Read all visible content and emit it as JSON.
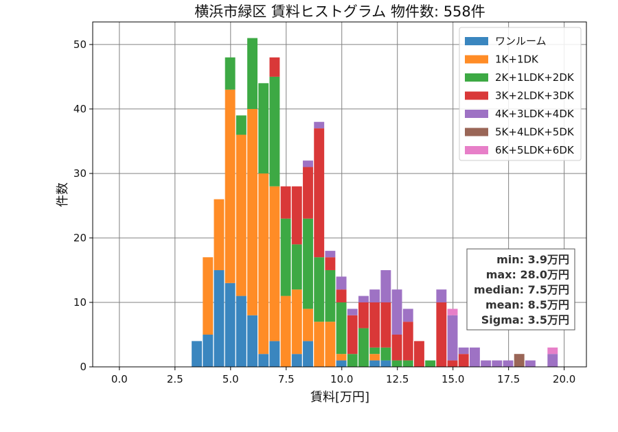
{
  "chart_data": {
    "type": "bar",
    "title": "横浜市緑区 賃料ヒストグラム 物件数: 558件",
    "xlabel": "賃料[万円]",
    "ylabel": "件数",
    "xlim": [
      -1.2,
      21.0
    ],
    "ylim": [
      0,
      53.5
    ],
    "bin_width": 0.5,
    "grid": true,
    "legend_position": "top-right",
    "xticks": [
      0.0,
      2.5,
      5.0,
      7.5,
      10.0,
      12.5,
      15.0,
      17.5,
      20.0
    ],
    "xtick_labels": [
      "0.0",
      "2.5",
      "5.0",
      "7.5",
      "10.0",
      "12.5",
      "15.0",
      "17.5",
      "20.0"
    ],
    "yticks": [
      0,
      10,
      20,
      30,
      40,
      50
    ],
    "ytick_labels": [
      "0",
      "10",
      "20",
      "30",
      "40",
      "50"
    ],
    "bin_starts": [
      3.25,
      3.75,
      4.25,
      4.75,
      5.25,
      5.75,
      6.25,
      6.75,
      7.25,
      7.75,
      8.25,
      8.75,
      9.25,
      9.75,
      10.25,
      10.75,
      11.25,
      11.75,
      12.25,
      12.75,
      13.25,
      13.75,
      14.25,
      14.75,
      15.25,
      15.75,
      16.25,
      16.75,
      17.25,
      17.75,
      18.25,
      18.75,
      19.25
    ],
    "series": [
      {
        "name": "ワンルーム",
        "color": "#3a86bf",
        "values": [
          4,
          5,
          15,
          13,
          11,
          8,
          2,
          4,
          0,
          2,
          4,
          0,
          0,
          1,
          0,
          0,
          1,
          1,
          0,
          0,
          0,
          0,
          0,
          0,
          0,
          0,
          0,
          0,
          0,
          0,
          0,
          0,
          0
        ]
      },
      {
        "name": "1K+1DK",
        "color": "#ff8c26",
        "values": [
          0,
          12,
          11,
          30,
          25,
          32,
          28,
          24,
          11,
          10,
          5,
          7,
          7,
          1,
          0,
          0,
          1,
          0,
          0,
          0,
          0,
          0,
          0,
          0,
          0,
          0,
          0,
          0,
          0,
          0,
          0,
          0,
          0
        ]
      },
      {
        "name": "2K+1LDK+2DK",
        "color": "#3da944",
        "values": [
          0,
          0,
          0,
          5,
          3,
          11,
          14,
          17,
          12,
          7,
          14,
          10,
          8,
          8,
          2,
          6,
          1,
          2,
          1,
          1,
          0,
          1,
          0,
          0,
          0,
          0,
          0,
          0,
          0,
          0,
          0,
          0,
          0
        ]
      },
      {
        "name": "3K+2LDK+3DK",
        "color": "#d93838",
        "values": [
          0,
          0,
          0,
          0,
          0,
          0,
          0,
          3,
          5,
          9,
          8,
          20,
          2,
          2,
          6,
          4,
          7,
          7,
          4,
          6,
          4,
          0,
          10,
          1,
          2,
          0,
          0,
          0,
          0,
          0,
          0,
          0,
          0
        ]
      },
      {
        "name": "4K+3LDK+4DK",
        "color": "#9e72c4",
        "values": [
          0,
          0,
          0,
          0,
          0,
          0,
          0,
          0,
          0,
          0,
          1,
          1,
          1,
          2,
          1,
          1,
          2,
          5,
          7,
          2,
          0,
          0,
          2,
          7,
          1,
          3,
          1,
          1,
          1,
          0,
          1,
          0,
          2
        ]
      },
      {
        "name": "5K+4LDK+5DK",
        "color": "#9a6657",
        "values": [
          0,
          0,
          0,
          0,
          0,
          0,
          0,
          0,
          0,
          0,
          0,
          0,
          0,
          0,
          0,
          0,
          0,
          0,
          0,
          0,
          0,
          0,
          0,
          0,
          0,
          0,
          0,
          0,
          0,
          2,
          0,
          0,
          0
        ]
      },
      {
        "name": "6K+5LDK+6DK",
        "color": "#e77fc8",
        "values": [
          0,
          0,
          0,
          0,
          0,
          0,
          0,
          0,
          0,
          0,
          0,
          0,
          0,
          0,
          0,
          0,
          0,
          0,
          0,
          0,
          0,
          0,
          0,
          1,
          0,
          0,
          0,
          0,
          0,
          0,
          0,
          0,
          1
        ]
      }
    ],
    "stats_box": [
      "min: 3.9万円",
      "max: 28.0万円",
      "median: 7.5万円",
      "mean: 8.5万円",
      "Sigma: 3.5万円"
    ]
  }
}
